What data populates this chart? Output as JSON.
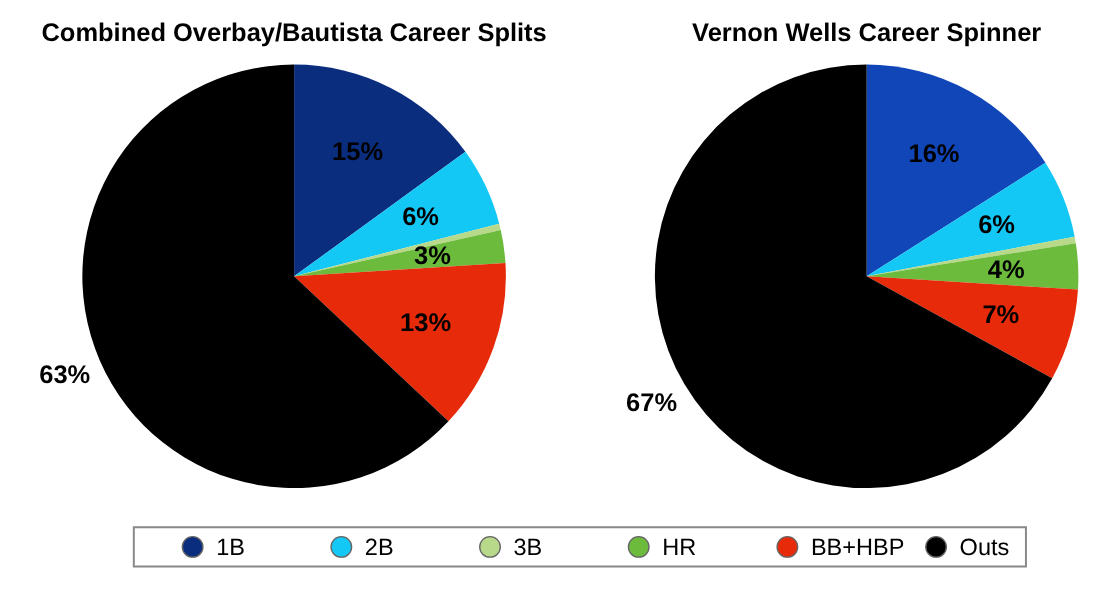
{
  "chart_data": [
    {
      "type": "pie",
      "title": "Combined Overbay/Bautista Career Splits",
      "categories": [
        "1B",
        "2B",
        "3B",
        "HR",
        "BB+HBP",
        "Outs"
      ],
      "values": [
        15,
        6,
        0.5,
        2.5,
        13,
        63
      ],
      "value_labels": [
        "15%",
        "6%",
        null,
        "3%",
        "13%",
        "63%"
      ],
      "colors": [
        "#0b2d7e",
        "#14c8f5",
        "#b8d98a",
        "#6cbb3c",
        "#e62a0a",
        "#000000"
      ],
      "legend": "bottom"
    },
    {
      "type": "pie",
      "title": "Vernon Wells Career Spinner",
      "categories": [
        null,
        null,
        null,
        null,
        null,
        null
      ],
      "values": [
        16,
        6,
        0.5,
        3.5,
        7,
        67
      ],
      "value_labels": [
        "16%",
        "6%",
        null,
        "4%",
        "7%",
        "67%"
      ],
      "colors": [
        "#1046b8",
        "#14c8f5",
        "#b8d98a",
        "#6cbb3c",
        "#e62a0a",
        "#000000"
      ]
    }
  ]
}
